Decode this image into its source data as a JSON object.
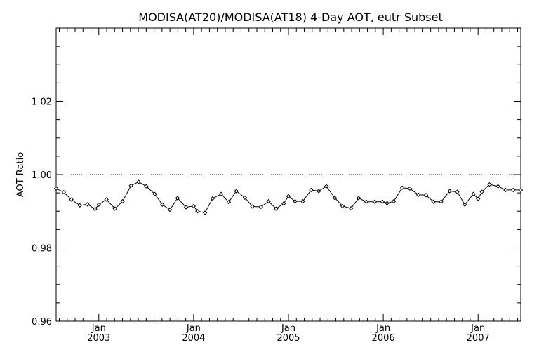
{
  "chart_data": {
    "type": "line",
    "title": "MODISA(AT20)/MODISA(AT18) 4-Day AOT, eutr Subset",
    "xlabel": "",
    "ylabel": "AOT Ratio",
    "xlim": [
      2002.55,
      2007.45
    ],
    "ylim": [
      0.96,
      1.04
    ],
    "y_ticks": [
      0.96,
      0.98,
      1.0,
      1.02
    ],
    "y_tick_labels": [
      "0.96",
      "0.98",
      "1.00",
      "1.02"
    ],
    "x_ticks": [
      {
        "x": 2003.0,
        "month": "Jan",
        "year": "2003"
      },
      {
        "x": 2004.0,
        "month": "Jan",
        "year": "2004"
      },
      {
        "x": 2005.0,
        "month": "Jan",
        "year": "2005"
      },
      {
        "x": 2006.0,
        "month": "Jan",
        "year": "2006"
      },
      {
        "x": 2007.0,
        "month": "Jan",
        "year": "2007"
      }
    ],
    "reference_line": 1.0,
    "grid": false,
    "series": [
      {
        "x": [
          2002.55,
          2002.63,
          2002.71,
          2002.8,
          2002.88,
          2002.96,
          2003.0,
          2003.08,
          2003.17,
          2003.25,
          2003.34,
          2003.42,
          2003.5,
          2003.59,
          2003.67,
          2003.75,
          2003.83,
          2003.92,
          2004.0,
          2004.04,
          2004.12,
          2004.2,
          2004.29,
          2004.37,
          2004.45,
          2004.54,
          2004.62,
          2004.71,
          2004.79,
          2004.87,
          2004.95,
          2005.0,
          2005.07,
          2005.15,
          2005.24,
          2005.32,
          2005.4,
          2005.49,
          2005.57,
          2005.66,
          2005.74,
          2005.82,
          2005.91,
          2005.99,
          2006.04,
          2006.11,
          2006.2,
          2006.28,
          2006.37,
          2006.45,
          2006.53,
          2006.61,
          2006.7,
          2006.78,
          2006.86,
          2006.95,
          2007.0,
          2007.04,
          2007.12,
          2007.21,
          2007.29,
          2007.37,
          2007.45
        ],
        "y": [
          0.9962,
          0.9952,
          0.9932,
          0.9916,
          0.9919,
          0.9906,
          0.9918,
          0.9932,
          0.9907,
          0.9927,
          0.997,
          0.998,
          0.9968,
          0.9947,
          0.9918,
          0.9904,
          0.9936,
          0.9911,
          0.9914,
          0.99,
          0.9896,
          0.9935,
          0.9947,
          0.9925,
          0.9955,
          0.9937,
          0.9913,
          0.9912,
          0.9927,
          0.9907,
          0.9921,
          0.9941,
          0.9927,
          0.9927,
          0.9958,
          0.9955,
          0.9968,
          0.9936,
          0.9914,
          0.9908,
          0.9936,
          0.9926,
          0.9926,
          0.9926,
          0.9922,
          0.9927,
          0.9964,
          0.9962,
          0.9945,
          0.9944,
          0.9926,
          0.9926,
          0.9955,
          0.9953,
          0.9918,
          0.9947,
          0.9934,
          0.9953,
          0.9973,
          0.9968,
          0.9958,
          0.9958,
          0.9958
        ]
      }
    ]
  }
}
